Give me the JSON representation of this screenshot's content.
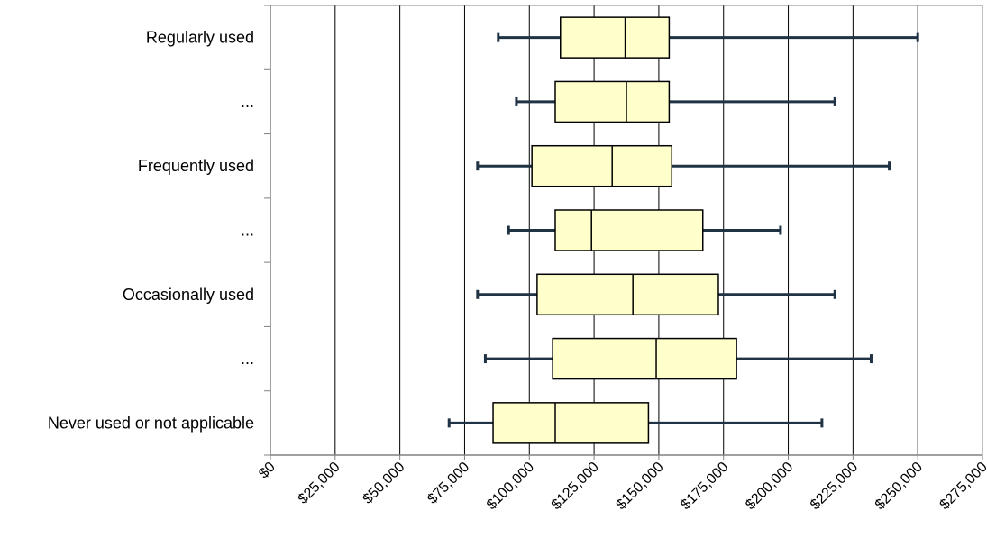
{
  "chart_data": {
    "type": "boxplot",
    "orientation": "horizontal",
    "categories": [
      "Regularly used",
      "...",
      "Frequently used",
      "...",
      "Occasionally used",
      "...",
      "Never used or not applicable"
    ],
    "boxes": [
      {
        "min": 88000,
        "q1": 112000,
        "median": 137000,
        "q3": 154000,
        "max": 250000
      },
      {
        "min": 95000,
        "q1": 110000,
        "median": 137500,
        "q3": 154000,
        "max": 218000
      },
      {
        "min": 80000,
        "q1": 101000,
        "median": 132000,
        "q3": 155000,
        "max": 239000
      },
      {
        "min": 92000,
        "q1": 110000,
        "median": 124000,
        "q3": 167000,
        "max": 197000
      },
      {
        "min": 80000,
        "q1": 103000,
        "median": 140000,
        "q3": 173000,
        "max": 218000
      },
      {
        "min": 83000,
        "q1": 109000,
        "median": 149000,
        "q3": 180000,
        "max": 232000
      },
      {
        "min": 69000,
        "q1": 86000,
        "median": 110000,
        "q3": 146000,
        "max": 213000
      }
    ],
    "x_ticks": [
      "$0",
      "$25,000",
      "$50,000",
      "$75,000",
      "$100,000",
      "$125,000",
      "$150,000",
      "$175,000",
      "$200,000",
      "$225,000",
      "$250,000",
      "$275,000"
    ],
    "xlim": [
      0,
      275000
    ],
    "grid": true,
    "colors": {
      "box_fill": "#ffffcc",
      "box_stroke": "#000000",
      "whisker": "#1f3345",
      "grid": "#000000",
      "axis": "#808080"
    }
  }
}
